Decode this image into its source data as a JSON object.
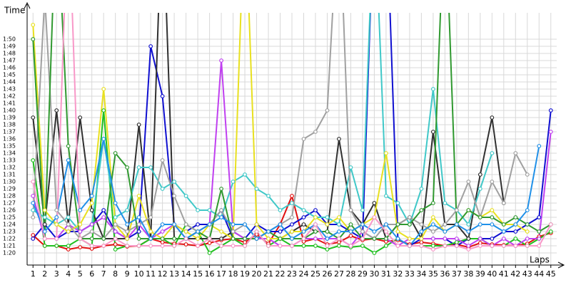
{
  "chart_data": {
    "type": "line",
    "y_title": "Time",
    "x_title": "Laps",
    "x": [
      1,
      2,
      3,
      4,
      5,
      6,
      7,
      8,
      9,
      10,
      11,
      12,
      13,
      14,
      15,
      16,
      17,
      18,
      19,
      20,
      21,
      22,
      23,
      24,
      25,
      26,
      27,
      28,
      29,
      30,
      31,
      32,
      33,
      34,
      35,
      36,
      37,
      38,
      39,
      40,
      41,
      42,
      43,
      44,
      45
    ],
    "xlim": [
      0.5,
      45.5
    ],
    "xticks": [
      1,
      2,
      3,
      4,
      5,
      6,
      7,
      8,
      9,
      10,
      11,
      12,
      13,
      14,
      15,
      16,
      17,
      18,
      19,
      20,
      21,
      22,
      23,
      24,
      25,
      26,
      27,
      28,
      29,
      30,
      31,
      32,
      33,
      34,
      35,
      36,
      37,
      38,
      39,
      40,
      41,
      42,
      43,
      44,
      45
    ],
    "ylim": [
      78.3,
      113.7
    ],
    "yticks": [
      {
        "value": 80,
        "label": "1:20"
      },
      {
        "value": 81,
        "label": "1:21"
      },
      {
        "value": 82,
        "label": "1:22"
      },
      {
        "value": 83,
        "label": "1:23"
      },
      {
        "value": 84,
        "label": "1:24"
      },
      {
        "value": 85,
        "label": "1:25"
      },
      {
        "value": 86,
        "label": "1:26"
      },
      {
        "value": 87,
        "label": "1:27"
      },
      {
        "value": 88,
        "label": "1:28"
      },
      {
        "value": 89,
        "label": "1:29"
      },
      {
        "value": 90,
        "label": "1:30"
      },
      {
        "value": 91,
        "label": "1:31"
      },
      {
        "value": 92,
        "label": "1:32"
      },
      {
        "value": 93,
        "label": "1:33"
      },
      {
        "value": 94,
        "label": "1:34"
      },
      {
        "value": 95,
        "label": "1:35"
      },
      {
        "value": 96,
        "label": "1:36"
      },
      {
        "value": 97,
        "label": "1:37"
      },
      {
        "value": 98,
        "label": "1:38"
      },
      {
        "value": 99,
        "label": "1:39"
      },
      {
        "value": 100,
        "label": "1:40"
      },
      {
        "value": 101,
        "label": "1:41"
      },
      {
        "value": 102,
        "label": "1:42"
      },
      {
        "value": 103,
        "label": "1:43"
      },
      {
        "value": 104,
        "label": "1:44"
      },
      {
        "value": 105,
        "label": "1:45"
      },
      {
        "value": 106,
        "label": "1:46"
      },
      {
        "value": 107,
        "label": "1:47"
      },
      {
        "value": 108,
        "label": "1:48"
      },
      {
        "value": 109,
        "label": "1:49"
      },
      {
        "value": 110,
        "label": "1:50"
      }
    ],
    "grid": true,
    "series": [
      {
        "color": "#e01010",
        "values": [
          82.5,
          81,
          81,
          80.5,
          80.8,
          80.6,
          81,
          81.2,
          80.9,
          81,
          82,
          81.5,
          81.3,
          81.2,
          81,
          81.4,
          81.8,
          82,
          81.5,
          82.6,
          81.3,
          84,
          88,
          81.6,
          82,
          81.2,
          81.5,
          82.4,
          81.8,
          82,
          81.6,
          81.8,
          81.2,
          81.5,
          81.3,
          81,
          81.2,
          80.8,
          81.4,
          81.2,
          81.1,
          81,
          81.3,
          82.3,
          82.8
        ]
      },
      {
        "color": "#1010d0",
        "values": [
          82,
          84,
          82,
          83,
          83,
          84,
          86,
          83,
          82,
          83,
          109,
          102,
          84,
          83,
          84,
          84,
          86,
          82,
          82,
          84,
          83,
          83,
          84,
          85,
          86,
          84,
          84,
          83,
          82,
          130,
          130,
          82,
          81,
          82,
          82,
          82,
          81,
          82,
          82,
          82,
          83,
          83,
          84,
          85,
          100
        ]
      },
      {
        "color": "#20c020",
        "values": [
          93,
          81,
          81,
          81,
          82,
          81,
          100,
          80.5,
          81,
          81,
          82,
          82,
          81,
          84,
          83,
          80,
          81,
          82,
          81,
          83,
          81,
          82,
          81,
          81,
          81,
          80.5,
          81,
          80.8,
          81,
          80,
          81,
          82,
          81,
          81,
          81,
          81,
          81.5,
          82,
          82,
          81,
          81,
          82,
          81,
          82,
          83
        ]
      },
      {
        "color": "#303030",
        "values": [
          99,
          84,
          100,
          84,
          99,
          86,
          82,
          82,
          82,
          98,
          82,
          130,
          82,
          82,
          82,
          82,
          82,
          83,
          82,
          82,
          82,
          82,
          83,
          84,
          83,
          83,
          96,
          86,
          84,
          87,
          82,
          84,
          85,
          82,
          97,
          84,
          84,
          82,
          91,
          99,
          87,
          null,
          null,
          null,
          null
        ]
      },
      {
        "color": "#40c8c8",
        "values": [
          86,
          85,
          84,
          85,
          83,
          84,
          96,
          85,
          86,
          92,
          92,
          89,
          90,
          88,
          86,
          86,
          85,
          90,
          91,
          89,
          88,
          86,
          87,
          86,
          85,
          85,
          84,
          92,
          86,
          130,
          88,
          87,
          84,
          89,
          103,
          87,
          86,
          84,
          89,
          94,
          null,
          null,
          null,
          null,
          null
        ]
      },
      {
        "color": "#c040f0",
        "values": [
          88,
          82,
          82,
          84,
          83,
          84,
          85,
          83,
          82,
          84,
          82,
          83,
          84,
          82,
          83,
          84,
          107,
          83,
          82,
          82,
          82,
          81,
          81,
          82,
          82,
          82,
          82,
          81,
          83,
          82,
          82,
          81,
          82,
          82,
          82,
          82,
          82,
          81,
          82,
          81,
          82,
          81,
          82,
          82,
          97
        ]
      },
      {
        "color": "#e8e020",
        "values": [
          112,
          86,
          84,
          83,
          84,
          87,
          103,
          84,
          82,
          88,
          83,
          82,
          84,
          83,
          82,
          84,
          83,
          82,
          130,
          84,
          82,
          82,
          83,
          83,
          85,
          84,
          85,
          83,
          84,
          85,
          94,
          83,
          82,
          82,
          85,
          83,
          84,
          86,
          85,
          86,
          84,
          84,
          83,
          null,
          null
        ]
      },
      {
        "color": "#a0a0a0",
        "values": [
          85,
          116,
          86,
          84,
          82,
          83,
          82,
          84,
          83,
          84,
          85,
          93,
          88,
          84,
          83,
          84,
          86,
          83,
          84,
          82,
          83,
          84,
          85,
          96,
          97,
          100,
          130,
          86,
          83,
          82,
          84,
          84,
          85,
          84,
          83,
          84,
          86,
          90,
          85,
          90,
          87,
          94,
          91,
          null,
          null
        ]
      },
      {
        "color": "#309930",
        "values": [
          110,
          82,
          130,
          95,
          82,
          82,
          82,
          94,
          92,
          82,
          82,
          82,
          82,
          82,
          83,
          82,
          89,
          82,
          82,
          82,
          83,
          82,
          82,
          82,
          83,
          83,
          82,
          84,
          82,
          82,
          82,
          84,
          84,
          86,
          87,
          130,
          84,
          86,
          85,
          85,
          84,
          85,
          84,
          83,
          84
        ]
      },
      {
        "color": "#2090e8",
        "values": [
          87,
          83,
          85,
          93,
          86,
          88,
          96,
          87,
          84,
          85,
          82,
          84,
          84,
          82,
          83,
          84,
          85,
          84,
          84,
          82,
          83,
          84,
          82,
          83,
          84,
          82,
          83,
          83,
          84,
          83,
          84,
          82,
          81,
          83,
          84,
          83,
          84,
          83,
          84,
          84,
          83,
          84,
          86,
          95,
          null
        ]
      },
      {
        "color": "#f898c8",
        "values": [
          90,
          82,
          82,
          130,
          82,
          81,
          81,
          82,
          81,
          81,
          81,
          81,
          81,
          82,
          81,
          82,
          81,
          81,
          81,
          83,
          81,
          81,
          81,
          82,
          84,
          81,
          82,
          81,
          82,
          85,
          83,
          81,
          81,
          81,
          80.5,
          81,
          81,
          80.5,
          81,
          81,
          81,
          81,
          81,
          81,
          84
        ]
      }
    ]
  }
}
